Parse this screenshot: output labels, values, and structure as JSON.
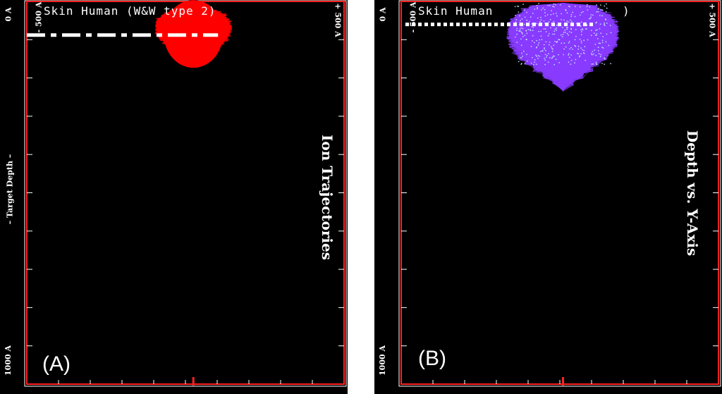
{
  "chart_data": [
    {
      "type": "scatter",
      "panel_label": "(A)",
      "title": "Skin Human (W&W type 2)",
      "side_title": "Ion Trajectories",
      "depth_axis_label": "– Target Depth –",
      "depth_range_A": [
        0,
        1000
      ],
      "y_range_A": [
        -500,
        500
      ],
      "tick_labels": {
        "depth_start": "0 A",
        "depth_end": "1000 A",
        "y_neg": "- 500 A",
        "y_pos": "+ 500 A"
      },
      "trajectory_color": "#ff0000",
      "mean_depth_line_A": 88,
      "max_depth_A": 160,
      "y_center_A": 25,
      "line_style": "dash-dot"
    },
    {
      "type": "scatter",
      "panel_label": "(B)",
      "title": "Skin Human",
      "title_suffix": ")",
      "side_title": "Depth vs. Y-Axis",
      "depth_range_A": [
        0,
        1000
      ],
      "y_range_A": [
        -500,
        500
      ],
      "tick_labels": {
        "depth_start": "0 A",
        "depth_end": "1000 A",
        "y_neg": "- 500 A",
        "y_pos": "+ 500 A"
      },
      "trajectory_color": "#8a3cff",
      "highlight_color": "#c8f0ff",
      "mean_depth_line_A": 60,
      "max_depth_A": 230,
      "y_center_A": 10,
      "line_style": "dotted"
    }
  ]
}
